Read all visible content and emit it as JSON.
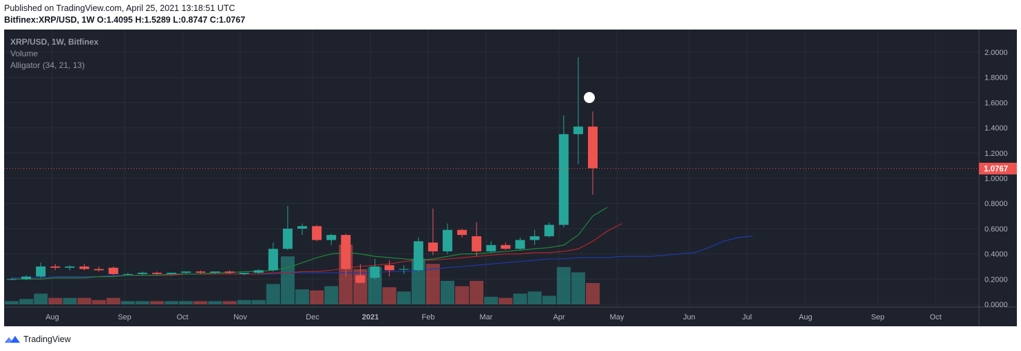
{
  "header": {
    "published": "Published on TradingView.com, April 25, 2021 13:18:51 UTC",
    "symbol": "Bitfinex:XRP/USD, 1W",
    "ohlc": "O:1.4095 H:1.5289 L:0.8747 C:1.0767"
  },
  "legend": {
    "symbol": "XRP/USD, 1W, Bitfinex",
    "volume": "Volume",
    "alligator": "Alligator (34, 21, 13)"
  },
  "footer": {
    "brand": "TradingView"
  },
  "colors": {
    "background": "#1e222d",
    "up": "#26a69a",
    "down": "#ef5350",
    "jaw": "#2962ff",
    "teeth": "#ef5350",
    "lips": "#26a69a",
    "grid": "#2a2e39",
    "axis_text": "#b2b5be"
  },
  "chart_data": {
    "type": "candlestick",
    "title": "XRP/USD, 1W, Bitfinex",
    "y_axis": {
      "range": [
        0,
        2.1
      ],
      "ticks": [
        "2.0000",
        "1.8000",
        "1.6000",
        "1.4000",
        "1.2000",
        "1.0000",
        "0.8000",
        "0.6000",
        "0.4000",
        "0.2000",
        "0.0000"
      ]
    },
    "x_axis": {
      "ticks": [
        "Aug",
        "Sep",
        "Oct",
        "Nov",
        "Dec",
        "2021",
        "Feb",
        "Mar",
        "Apr",
        "May",
        "Jun",
        "Jul",
        "Aug",
        "Sep",
        "Oct"
      ]
    },
    "last_price": {
      "value": 1.0767,
      "label": "1.0767"
    },
    "candles": [
      {
        "o": 0.2,
        "h": 0.21,
        "l": 0.19,
        "c": 0.2
      },
      {
        "o": 0.2,
        "h": 0.23,
        "l": 0.19,
        "c": 0.22
      },
      {
        "o": 0.22,
        "h": 0.33,
        "l": 0.21,
        "c": 0.3
      },
      {
        "o": 0.3,
        "h": 0.32,
        "l": 0.27,
        "c": 0.29
      },
      {
        "o": 0.29,
        "h": 0.31,
        "l": 0.27,
        "c": 0.3
      },
      {
        "o": 0.3,
        "h": 0.32,
        "l": 0.27,
        "c": 0.28
      },
      {
        "o": 0.28,
        "h": 0.3,
        "l": 0.26,
        "c": 0.27
      },
      {
        "o": 0.29,
        "h": 0.3,
        "l": 0.23,
        "c": 0.24
      },
      {
        "o": 0.24,
        "h": 0.25,
        "l": 0.23,
        "c": 0.24
      },
      {
        "o": 0.24,
        "h": 0.26,
        "l": 0.23,
        "c": 0.25
      },
      {
        "o": 0.25,
        "h": 0.26,
        "l": 0.23,
        "c": 0.24
      },
      {
        "o": 0.24,
        "h": 0.25,
        "l": 0.23,
        "c": 0.25
      },
      {
        "o": 0.25,
        "h": 0.26,
        "l": 0.24,
        "c": 0.26
      },
      {
        "o": 0.26,
        "h": 0.27,
        "l": 0.24,
        "c": 0.25
      },
      {
        "o": 0.25,
        "h": 0.26,
        "l": 0.24,
        "c": 0.26
      },
      {
        "o": 0.26,
        "h": 0.27,
        "l": 0.24,
        "c": 0.25
      },
      {
        "o": 0.24,
        "h": 0.25,
        "l": 0.23,
        "c": 0.25
      },
      {
        "o": 0.25,
        "h": 0.28,
        "l": 0.24,
        "c": 0.27
      },
      {
        "o": 0.27,
        "h": 0.49,
        "l": 0.26,
        "c": 0.44
      },
      {
        "o": 0.44,
        "h": 0.78,
        "l": 0.43,
        "c": 0.6
      },
      {
        "o": 0.6,
        "h": 0.64,
        "l": 0.55,
        "c": 0.62
      },
      {
        "o": 0.62,
        "h": 0.63,
        "l": 0.5,
        "c": 0.51
      },
      {
        "o": 0.51,
        "h": 0.56,
        "l": 0.47,
        "c": 0.55
      },
      {
        "o": 0.55,
        "h": 0.56,
        "l": 0.22,
        "c": 0.28
      },
      {
        "o": 0.23,
        "h": 0.32,
        "l": 0.17,
        "c": 0.17
      },
      {
        "o": 0.21,
        "h": 0.36,
        "l": 0.2,
        "c": 0.3
      },
      {
        "o": 0.31,
        "h": 0.35,
        "l": 0.22,
        "c": 0.27
      },
      {
        "o": 0.28,
        "h": 0.31,
        "l": 0.24,
        "c": 0.28
      },
      {
        "o": 0.27,
        "h": 0.53,
        "l": 0.26,
        "c": 0.5
      },
      {
        "o": 0.49,
        "h": 0.76,
        "l": 0.39,
        "c": 0.42
      },
      {
        "o": 0.42,
        "h": 0.64,
        "l": 0.4,
        "c": 0.59
      },
      {
        "o": 0.59,
        "h": 0.6,
        "l": 0.53,
        "c": 0.55
      },
      {
        "o": 0.54,
        "h": 0.65,
        "l": 0.38,
        "c": 0.42
      },
      {
        "o": 0.42,
        "h": 0.5,
        "l": 0.41,
        "c": 0.47
      },
      {
        "o": 0.47,
        "h": 0.49,
        "l": 0.43,
        "c": 0.44
      },
      {
        "o": 0.44,
        "h": 0.53,
        "l": 0.43,
        "c": 0.51
      },
      {
        "o": 0.51,
        "h": 0.59,
        "l": 0.47,
        "c": 0.54
      },
      {
        "o": 0.54,
        "h": 0.65,
        "l": 0.53,
        "c": 0.63
      },
      {
        "o": 0.63,
        "h": 1.5,
        "l": 0.61,
        "c": 1.35
      },
      {
        "o": 1.35,
        "h": 1.96,
        "l": 1.11,
        "c": 1.41
      },
      {
        "o": 1.41,
        "h": 1.53,
        "l": 0.87,
        "c": 1.08
      }
    ],
    "volume": [
      0.03,
      0.05,
      0.1,
      0.06,
      0.06,
      0.06,
      0.04,
      0.06,
      0.03,
      0.03,
      0.03,
      0.03,
      0.03,
      0.03,
      0.03,
      0.03,
      0.04,
      0.04,
      0.19,
      0.45,
      0.14,
      0.13,
      0.17,
      0.56,
      0.33,
      0.35,
      0.16,
      0.12,
      0.43,
      0.38,
      0.22,
      0.17,
      0.22,
      0.07,
      0.06,
      0.1,
      0.12,
      0.08,
      0.35,
      0.3,
      0.2
    ],
    "alligator": {
      "jaw": [
        0.21,
        0.21,
        0.21,
        0.22,
        0.22,
        0.22,
        0.22,
        0.23,
        0.23,
        0.23,
        0.23,
        0.24,
        0.24,
        0.24,
        0.24,
        0.24,
        0.24,
        0.24,
        0.24,
        0.25,
        0.25,
        0.25,
        0.25,
        0.25,
        0.25,
        0.25,
        0.26,
        0.26,
        0.27,
        0.28,
        0.29,
        0.3,
        0.31,
        0.32,
        0.33,
        0.34,
        0.35,
        0.36,
        0.36,
        0.37,
        0.37,
        0.37,
        0.38,
        0.38,
        0.38,
        0.39,
        0.4,
        0.41,
        0.45,
        0.5,
        0.53,
        0.54
      ],
      "teeth": [
        0.2,
        0.2,
        0.2,
        0.21,
        0.21,
        0.21,
        0.22,
        0.22,
        0.23,
        0.23,
        0.23,
        0.23,
        0.24,
        0.24,
        0.24,
        0.24,
        0.24,
        0.24,
        0.25,
        0.25,
        0.26,
        0.26,
        0.27,
        0.29,
        0.3,
        0.31,
        0.32,
        0.34,
        0.35,
        0.35,
        0.36,
        0.37,
        0.38,
        0.39,
        0.4,
        0.4,
        0.41,
        0.41,
        0.42,
        0.44,
        0.5,
        0.58,
        0.64
      ],
      "lips": [
        0.2,
        0.2,
        0.2,
        0.21,
        0.21,
        0.21,
        0.22,
        0.22,
        0.23,
        0.23,
        0.23,
        0.24,
        0.24,
        0.24,
        0.25,
        0.25,
        0.26,
        0.26,
        0.27,
        0.29,
        0.33,
        0.37,
        0.4,
        0.41,
        0.4,
        0.38,
        0.37,
        0.36,
        0.35,
        0.36,
        0.38,
        0.4,
        0.4,
        0.41,
        0.42,
        0.43,
        0.44,
        0.45,
        0.47,
        0.55,
        0.7,
        0.77
      ]
    }
  }
}
